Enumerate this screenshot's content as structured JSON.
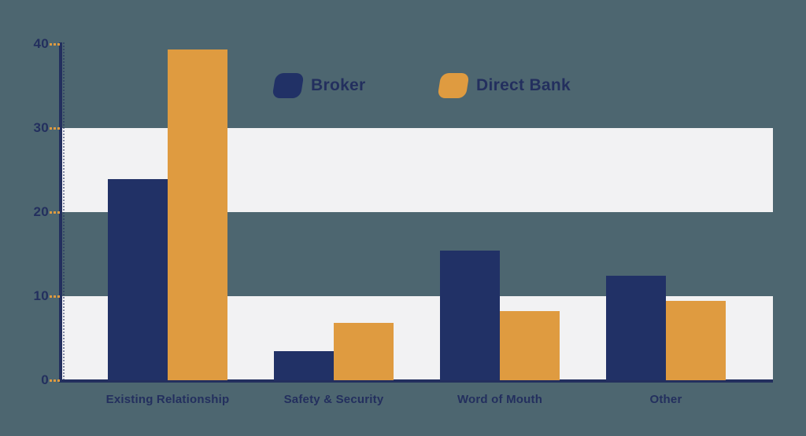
{
  "page": {
    "background_color": "#4D6670"
  },
  "chart_data": {
    "type": "bar",
    "title": "",
    "categories": [
      "Existing Relationship",
      "Safety & Security",
      "Word of Mouth",
      "Other"
    ],
    "series": [
      {
        "name": "Broker",
        "color": "#213166",
        "values": [
          23.9,
          3.5,
          15.4,
          12.4
        ]
      },
      {
        "name": "Direct Bank",
        "color": "#DF9B40",
        "values": [
          39.3,
          6.8,
          8.2,
          9.4
        ]
      }
    ],
    "y_ticks": [
      0,
      10,
      20,
      30,
      40
    ],
    "ylim": [
      0,
      40
    ],
    "grid": "alternating-bands",
    "grid_bands": [
      [
        20,
        30
      ],
      [
        0,
        10
      ]
    ],
    "band_color": "#F2F2F3",
    "axis_color": "#232F5E",
    "label_color": "#232F5E",
    "tick_dash_color": "#DF9B40",
    "legend_position": "top-center",
    "xlabel": "",
    "ylabel": ""
  }
}
